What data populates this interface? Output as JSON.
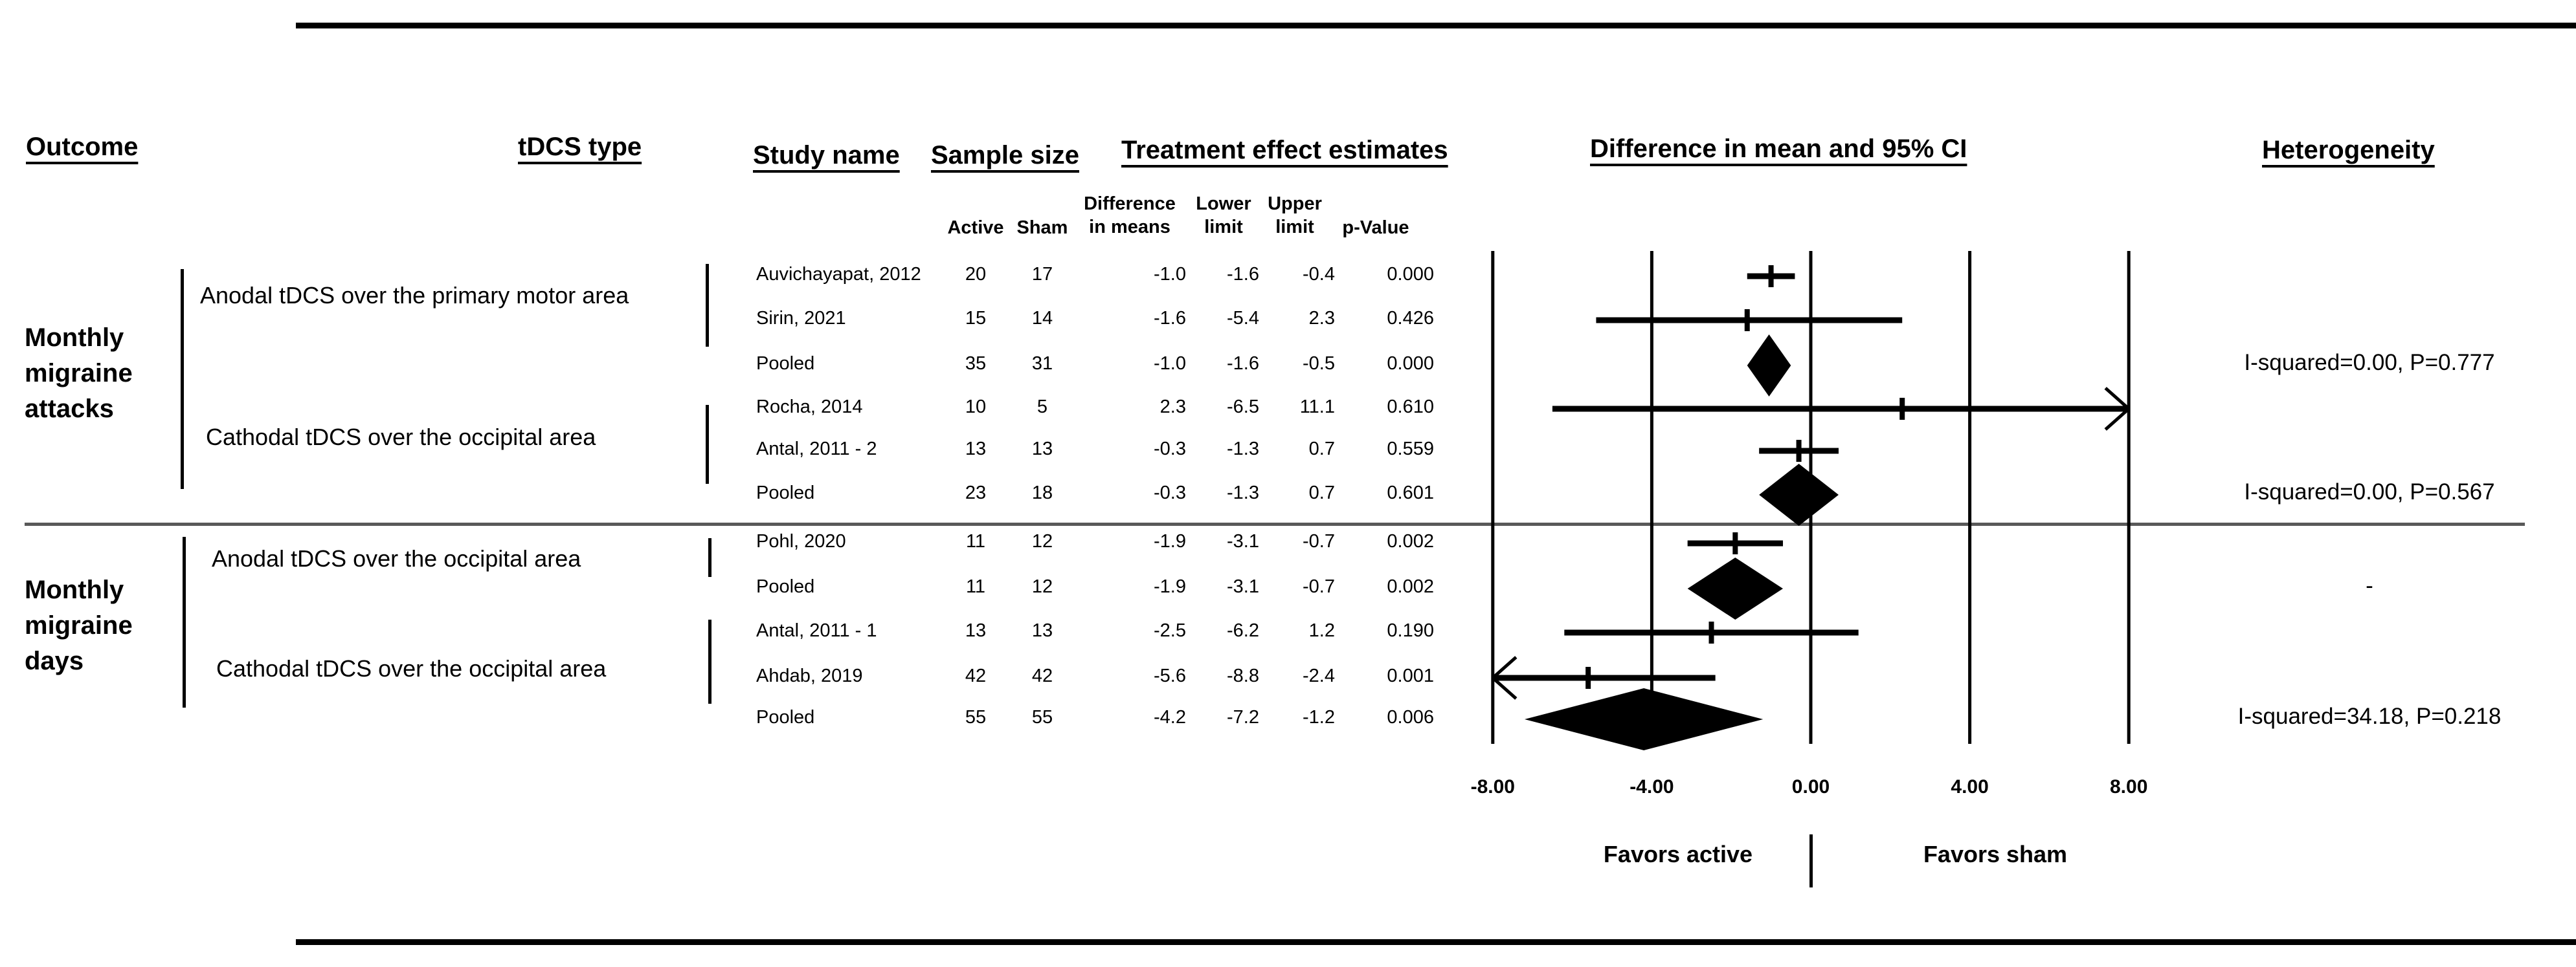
{
  "headers": {
    "outcome": "Outcome",
    "tdcs_type": "tDCS type",
    "study_name": "Study name",
    "sample_size": "Sample size",
    "treatment_effect": "Treatment effect estimates",
    "forest": "Difference in mean and 95% CI",
    "heterogeneity": "Heterogeneity"
  },
  "subheaders": {
    "active": "Active",
    "sham": "Sham",
    "diff1": "Difference",
    "diff2": "in means",
    "lower1": "Lower",
    "lower2": "limit",
    "upper1": "Upper",
    "upper2": "limit",
    "pvalue": "p-Value"
  },
  "outcomes": {
    "attacks": [
      "Monthly",
      "migraine",
      "attacks"
    ],
    "days": [
      "Monthly",
      "migraine",
      "days"
    ]
  },
  "tdcs_labels": {
    "g1a": "Anodal tDCS over the primary motor area",
    "g1b": "Cathodal tDCS  over the occipital area",
    "g2a": "Anodal tDCS over the occipital area",
    "g2b": "Cathodal tDCS over the occipital area"
  },
  "table": {
    "rows": [
      {
        "study": "Auvichayapat, 2012",
        "active": "20",
        "sham": "17",
        "diff": "-1.0",
        "lower": "-1.6",
        "upper": "-0.4",
        "p": "0.000"
      },
      {
        "study": "Sirin, 2021",
        "active": "15",
        "sham": "14",
        "diff": "-1.6",
        "lower": "-5.4",
        "upper": "2.3",
        "p": "0.426"
      },
      {
        "study": "Pooled",
        "active": "35",
        "sham": "31",
        "diff": "-1.0",
        "lower": "-1.6",
        "upper": "-0.5",
        "p": "0.000"
      },
      {
        "study": "Rocha, 2014",
        "active": "10",
        "sham": "5",
        "diff": "2.3",
        "lower": "-6.5",
        "upper": "11.1",
        "p": "0.610"
      },
      {
        "study": "Antal, 2011 - 2",
        "active": "13",
        "sham": "13",
        "diff": "-0.3",
        "lower": "-1.3",
        "upper": "0.7",
        "p": "0.559"
      },
      {
        "study": "Pooled",
        "active": "23",
        "sham": "18",
        "diff": "-0.3",
        "lower": "-1.3",
        "upper": "0.7",
        "p": "0.601"
      },
      {
        "study": "Pohl, 2020",
        "active": "11",
        "sham": "12",
        "diff": "-1.9",
        "lower": "-3.1",
        "upper": "-0.7",
        "p": "0.002"
      },
      {
        "study": "Pooled",
        "active": "11",
        "sham": "12",
        "diff": "-1.9",
        "lower": "-3.1",
        "upper": "-0.7",
        "p": "0.002"
      },
      {
        "study": "Antal, 2011 - 1",
        "active": "13",
        "sham": "13",
        "diff": "-2.5",
        "lower": "-6.2",
        "upper": "1.2",
        "p": "0.190"
      },
      {
        "study": "Ahdab, 2019",
        "active": "42",
        "sham": "42",
        "diff": "-5.6",
        "lower": "-8.8",
        "upper": "-2.4",
        "p": "0.001"
      },
      {
        "study": "Pooled",
        "active": "55",
        "sham": "55",
        "diff": "-4.2",
        "lower": "-7.2",
        "upper": "-1.2",
        "p": "0.006"
      }
    ]
  },
  "heterogeneity_notes": [
    {
      "row": 2,
      "text": "I-squared=0.00, P=0.777"
    },
    {
      "row": 5,
      "text": "I-squared=0.00, P=0.567"
    },
    {
      "row": 7,
      "text": "-"
    },
    {
      "row": 10,
      "text": "I-squared=34.18, P=0.218"
    }
  ],
  "axis": {
    "labels": [
      "-8.00",
      "-4.00",
      "0.00",
      "4.00",
      "8.00"
    ],
    "values": [
      -8,
      -4,
      0,
      4,
      8
    ]
  },
  "footer": {
    "favors_left": "Favors active",
    "favors_right": "Favors sham"
  },
  "colors": {
    "ink": "#000000",
    "divider": "#595959"
  },
  "chart_data": {
    "type": "forest",
    "title": "Difference in mean and 95% CI",
    "xlim": [
      -8,
      8
    ],
    "x_ticks": [
      -8,
      -4,
      0,
      4,
      8
    ],
    "x_tick_labels": [
      "-8.00",
      "-4.00",
      "0.00",
      "4.00",
      "8.00"
    ],
    "favors": {
      "left": "Favors active",
      "right": "Favors sham"
    },
    "points": [
      {
        "outcome": "Monthly migraine attacks",
        "subgroup": "Anodal tDCS over the primary motor area",
        "study": "Auvichayapat, 2012",
        "n_active": 20,
        "n_sham": 17,
        "mean": -1.0,
        "lower": -1.6,
        "upper": -0.4,
        "p": 0.0,
        "marker": "tick"
      },
      {
        "outcome": "Monthly migraine attacks",
        "subgroup": "Anodal tDCS over the primary motor area",
        "study": "Sirin, 2021",
        "n_active": 15,
        "n_sham": 14,
        "mean": -1.6,
        "lower": -5.4,
        "upper": 2.3,
        "p": 0.426,
        "marker": "tick"
      },
      {
        "outcome": "Monthly migraine attacks",
        "subgroup": "Anodal tDCS over the primary motor area",
        "study": "Pooled",
        "n_active": 35,
        "n_sham": 31,
        "mean": -1.0,
        "lower": -1.6,
        "upper": -0.5,
        "p": 0.0,
        "marker": "diamond"
      },
      {
        "outcome": "Monthly migraine attacks",
        "subgroup": "Cathodal tDCS over the occipital area",
        "study": "Rocha, 2014",
        "n_active": 10,
        "n_sham": 5,
        "mean": 2.3,
        "lower": -6.5,
        "upper": 11.1,
        "p": 0.61,
        "marker": "tick"
      },
      {
        "outcome": "Monthly migraine attacks",
        "subgroup": "Cathodal tDCS over the occipital area",
        "study": "Antal, 2011 - 2",
        "n_active": 13,
        "n_sham": 13,
        "mean": -0.3,
        "lower": -1.3,
        "upper": 0.7,
        "p": 0.559,
        "marker": "tick"
      },
      {
        "outcome": "Monthly migraine attacks",
        "subgroup": "Cathodal tDCS over the occipital area",
        "study": "Pooled",
        "n_active": 23,
        "n_sham": 18,
        "mean": -0.3,
        "lower": -1.3,
        "upper": 0.7,
        "p": 0.601,
        "marker": "diamond"
      },
      {
        "outcome": "Monthly migraine days",
        "subgroup": "Anodal tDCS over the occipital area",
        "study": "Pohl, 2020",
        "n_active": 11,
        "n_sham": 12,
        "mean": -1.9,
        "lower": -3.1,
        "upper": -0.7,
        "p": 0.002,
        "marker": "tick"
      },
      {
        "outcome": "Monthly migraine days",
        "subgroup": "Anodal tDCS over the occipital area",
        "study": "Pooled",
        "n_active": 11,
        "n_sham": 12,
        "mean": -1.9,
        "lower": -3.1,
        "upper": -0.7,
        "p": 0.002,
        "marker": "diamond"
      },
      {
        "outcome": "Monthly migraine days",
        "subgroup": "Cathodal tDCS over the occipital area",
        "study": "Antal, 2011 - 1",
        "n_active": 13,
        "n_sham": 13,
        "mean": -2.5,
        "lower": -6.2,
        "upper": 1.2,
        "p": 0.19,
        "marker": "tick"
      },
      {
        "outcome": "Monthly migraine days",
        "subgroup": "Cathodal tDCS over the occipital area",
        "study": "Ahdab, 2019",
        "n_active": 42,
        "n_sham": 42,
        "mean": -5.6,
        "lower": -8.8,
        "upper": -2.4,
        "p": 0.001,
        "marker": "tick"
      },
      {
        "outcome": "Monthly migraine days",
        "subgroup": "Cathodal tDCS over the occipital area",
        "study": "Pooled",
        "n_active": 55,
        "n_sham": 55,
        "mean": -4.2,
        "lower": -7.2,
        "upper": -1.2,
        "p": 0.006,
        "marker": "diamond"
      }
    ],
    "heterogeneity": [
      {
        "pooled_of": "Anodal tDCS over the primary motor area / Monthly migraine attacks",
        "text": "I-squared=0.00, P=0.777"
      },
      {
        "pooled_of": "Cathodal tDCS over the occipital area / Monthly migraine attacks",
        "text": "I-squared=0.00, P=0.567"
      },
      {
        "pooled_of": "Anodal tDCS over the occipital area / Monthly migraine days",
        "text": "-"
      },
      {
        "pooled_of": "Cathodal tDCS over the occipital area / Monthly migraine days",
        "text": "I-squared=34.18, P=0.218"
      }
    ]
  }
}
